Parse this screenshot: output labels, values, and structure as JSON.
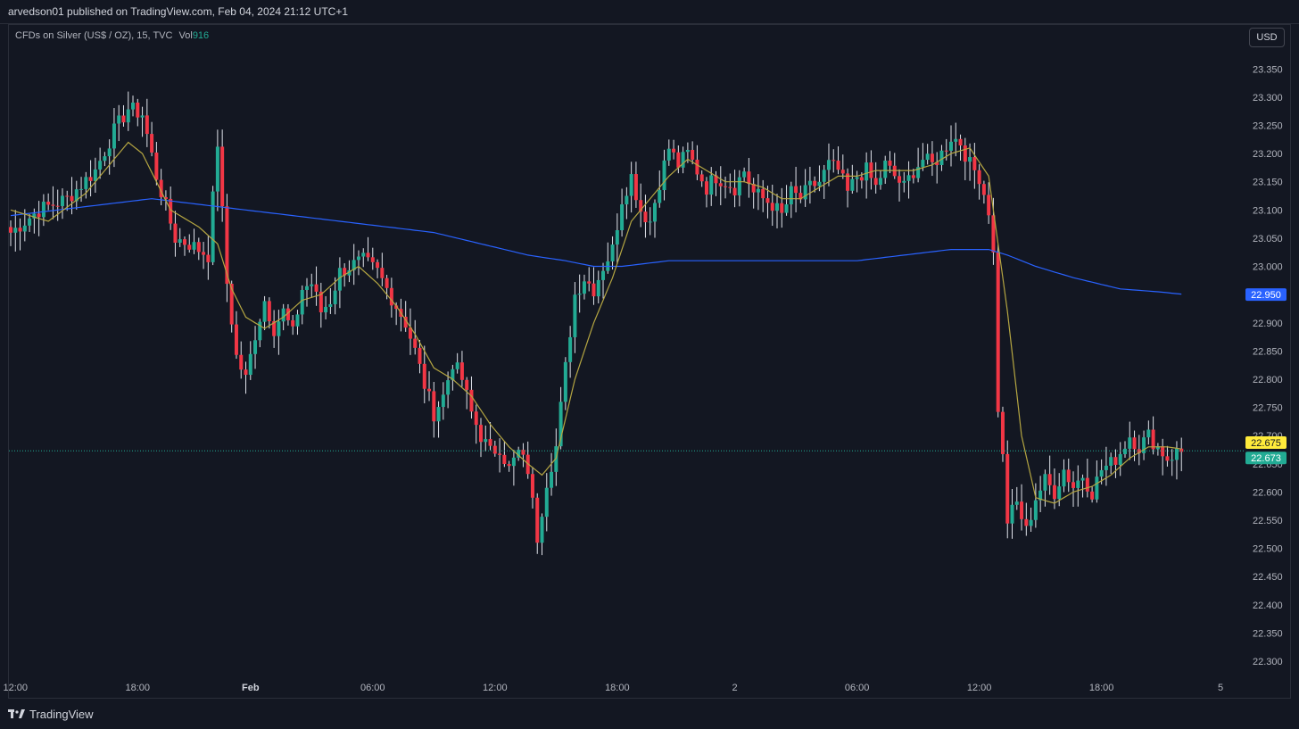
{
  "header": {
    "published_text": "arvedson01 published on TradingView.com, Feb 04, 2024 21:12 UTC+1"
  },
  "legend": {
    "symbol_text": "CFDs on Silver (US$ / OZ), 15, TVC",
    "volume_label": "Vol",
    "volume_value": "916"
  },
  "currency_button": "USD",
  "footer": {
    "brand": "TradingView"
  },
  "colors": {
    "background": "#131722",
    "up": "#22ab94",
    "down": "#f23645",
    "wick": "#e0e3eb",
    "ma_fast": "#b5a642",
    "ma_slow": "#2962ff",
    "last_price": "#22ab94",
    "ma_tag": "#ffeb3b",
    "slow_tag": "#2962ff"
  },
  "chart_data": {
    "type": "candlestick",
    "title": "CFDs on Silver (US$ / OZ), 15, TVC",
    "x_ticks": [
      "12:00",
      "18:00",
      "Feb",
      "06:00",
      "12:00",
      "18:00",
      "2",
      "06:00",
      "12:00",
      "18:00",
      "5"
    ],
    "y_ticks": [
      "23.350",
      "23.300",
      "23.250",
      "23.200",
      "23.150",
      "23.100",
      "23.050",
      "23.000",
      "22.950",
      "22.900",
      "22.850",
      "22.800",
      "22.750",
      "22.700",
      "22.650",
      "22.600",
      "22.550",
      "22.500",
      "22.450",
      "22.400",
      "22.350",
      "22.300"
    ],
    "ylim": [
      22.27,
      23.39
    ],
    "price_labels": [
      {
        "text": "22.950",
        "value": 22.95,
        "color": "#2962ff",
        "text_color": "#ffffff"
      },
      {
        "text": "22.675",
        "value": 22.675,
        "color": "#ffeb3b",
        "text_color": "#131722"
      },
      {
        "text": "22.673",
        "value": 22.673,
        "color": "#22ab94",
        "text_color": "#ffffff"
      }
    ],
    "last_price": 22.673,
    "anchors": [
      [
        0,
        23.06
      ],
      [
        6,
        23.1
      ],
      [
        12,
        23.12
      ],
      [
        18,
        23.17
      ],
      [
        22,
        23.24
      ],
      [
        25,
        23.28
      ],
      [
        28,
        23.27
      ],
      [
        31,
        23.16
      ],
      [
        35,
        23.05
      ],
      [
        38,
        23.04
      ],
      [
        42,
        23.02
      ],
      [
        44,
        23.22
      ],
      [
        46,
        22.97
      ],
      [
        48,
        22.84
      ],
      [
        50,
        22.8
      ],
      [
        52,
        22.88
      ],
      [
        54,
        22.94
      ],
      [
        56,
        22.89
      ],
      [
        58,
        22.92
      ],
      [
        60,
        22.88
      ],
      [
        62,
        22.96
      ],
      [
        64,
        22.97
      ],
      [
        66,
        22.92
      ],
      [
        68,
        22.94
      ],
      [
        70,
        22.99
      ],
      [
        72,
        23.0
      ],
      [
        75,
        23.01
      ],
      [
        78,
        22.99
      ],
      [
        80,
        22.96
      ],
      [
        82,
        22.93
      ],
      [
        84,
        22.9
      ],
      [
        86,
        22.85
      ],
      [
        88,
        22.79
      ],
      [
        90,
        22.74
      ],
      [
        92,
        22.77
      ],
      [
        94,
        22.83
      ],
      [
        96,
        22.8
      ],
      [
        98,
        22.74
      ],
      [
        100,
        22.7
      ],
      [
        102,
        22.67
      ],
      [
        104,
        22.68
      ],
      [
        106,
        22.64
      ],
      [
        108,
        22.67
      ],
      [
        110,
        22.64
      ],
      [
        112,
        22.52
      ],
      [
        114,
        22.62
      ],
      [
        116,
        22.68
      ],
      [
        118,
        22.82
      ],
      [
        120,
        22.95
      ],
      [
        122,
        22.98
      ],
      [
        124,
        22.96
      ],
      [
        126,
        23.0
      ],
      [
        128,
        23.03
      ],
      [
        130,
        23.12
      ],
      [
        132,
        23.16
      ],
      [
        134,
        23.1
      ],
      [
        136,
        23.08
      ],
      [
        138,
        23.15
      ],
      [
        140,
        23.21
      ],
      [
        142,
        23.18
      ],
      [
        144,
        23.2
      ],
      [
        146,
        23.17
      ],
      [
        148,
        23.14
      ],
      [
        150,
        23.16
      ],
      [
        152,
        23.15
      ],
      [
        154,
        23.14
      ],
      [
        156,
        23.17
      ],
      [
        158,
        23.13
      ],
      [
        160,
        23.12
      ],
      [
        162,
        23.11
      ],
      [
        164,
        23.09
      ],
      [
        166,
        23.13
      ],
      [
        168,
        23.12
      ],
      [
        170,
        23.14
      ],
      [
        172,
        23.15
      ],
      [
        174,
        23.18
      ],
      [
        176,
        23.17
      ],
      [
        178,
        23.13
      ],
      [
        180,
        23.16
      ],
      [
        182,
        23.17
      ],
      [
        184,
        23.14
      ],
      [
        186,
        23.18
      ],
      [
        188,
        23.16
      ],
      [
        190,
        23.14
      ],
      [
        192,
        23.17
      ],
      [
        194,
        23.19
      ],
      [
        196,
        23.18
      ],
      [
        198,
        23.2
      ],
      [
        200,
        23.23
      ],
      [
        202,
        23.22
      ],
      [
        204,
        23.18
      ],
      [
        206,
        23.16
      ],
      [
        208,
        23.1
      ],
      [
        209,
        23.02
      ],
      [
        210,
        22.75
      ],
      [
        211,
        22.66
      ],
      [
        212,
        22.55
      ],
      [
        214,
        22.58
      ],
      [
        216,
        22.53
      ],
      [
        218,
        22.59
      ],
      [
        220,
        22.62
      ],
      [
        222,
        22.6
      ],
      [
        224,
        22.64
      ],
      [
        226,
        22.61
      ],
      [
        228,
        22.63
      ],
      [
        230,
        22.6
      ],
      [
        232,
        22.64
      ],
      [
        234,
        22.65
      ],
      [
        236,
        22.67
      ],
      [
        238,
        22.7
      ],
      [
        240,
        22.68
      ],
      [
        242,
        22.7
      ],
      [
        244,
        22.68
      ],
      [
        246,
        22.66
      ],
      [
        248,
        22.67
      ],
      [
        250,
        22.673
      ]
    ],
    "fast_ma": [
      [
        0,
        23.1
      ],
      [
        8,
        23.08
      ],
      [
        16,
        23.13
      ],
      [
        22,
        23.19
      ],
      [
        25,
        23.22
      ],
      [
        28,
        23.2
      ],
      [
        34,
        23.1
      ],
      [
        40,
        23.07
      ],
      [
        44,
        23.04
      ],
      [
        47,
        22.96
      ],
      [
        50,
        22.91
      ],
      [
        54,
        22.89
      ],
      [
        58,
        22.91
      ],
      [
        62,
        22.94
      ],
      [
        66,
        22.95
      ],
      [
        70,
        22.98
      ],
      [
        74,
        23.0
      ],
      [
        78,
        22.97
      ],
      [
        82,
        22.93
      ],
      [
        86,
        22.88
      ],
      [
        90,
        22.82
      ],
      [
        94,
        22.8
      ],
      [
        98,
        22.77
      ],
      [
        102,
        22.72
      ],
      [
        106,
        22.68
      ],
      [
        110,
        22.65
      ],
      [
        113,
        22.63
      ],
      [
        116,
        22.66
      ],
      [
        120,
        22.8
      ],
      [
        124,
        22.9
      ],
      [
        128,
        22.98
      ],
      [
        132,
        23.08
      ],
      [
        136,
        23.12
      ],
      [
        140,
        23.16
      ],
      [
        144,
        23.19
      ],
      [
        148,
        23.17
      ],
      [
        152,
        23.15
      ],
      [
        156,
        23.15
      ],
      [
        160,
        23.14
      ],
      [
        164,
        23.12
      ],
      [
        168,
        23.12
      ],
      [
        172,
        23.14
      ],
      [
        176,
        23.16
      ],
      [
        180,
        23.16
      ],
      [
        184,
        23.17
      ],
      [
        188,
        23.17
      ],
      [
        192,
        23.17
      ],
      [
        196,
        23.18
      ],
      [
        200,
        23.2
      ],
      [
        204,
        23.21
      ],
      [
        208,
        23.16
      ],
      [
        212,
        22.92
      ],
      [
        215,
        22.7
      ],
      [
        218,
        22.59
      ],
      [
        222,
        22.58
      ],
      [
        226,
        22.6
      ],
      [
        230,
        22.61
      ],
      [
        234,
        22.63
      ],
      [
        238,
        22.66
      ],
      [
        242,
        22.68
      ],
      [
        246,
        22.68
      ],
      [
        250,
        22.675
      ]
    ],
    "slow_ma": [
      [
        0,
        23.09
      ],
      [
        10,
        23.1
      ],
      [
        20,
        23.11
      ],
      [
        30,
        23.12
      ],
      [
        40,
        23.11
      ],
      [
        50,
        23.1
      ],
      [
        60,
        23.09
      ],
      [
        70,
        23.08
      ],
      [
        80,
        23.07
      ],
      [
        90,
        23.06
      ],
      [
        100,
        23.04
      ],
      [
        110,
        23.02
      ],
      [
        118,
        23.01
      ],
      [
        124,
        23.0
      ],
      [
        130,
        23.0
      ],
      [
        140,
        23.01
      ],
      [
        150,
        23.01
      ],
      [
        160,
        23.01
      ],
      [
        170,
        23.01
      ],
      [
        180,
        23.01
      ],
      [
        190,
        23.02
      ],
      [
        200,
        23.03
      ],
      [
        208,
        23.03
      ],
      [
        212,
        23.02
      ],
      [
        218,
        23.0
      ],
      [
        226,
        22.98
      ],
      [
        236,
        22.96
      ],
      [
        244,
        22.955
      ],
      [
        250,
        22.95
      ]
    ],
    "candle_count": 250
  }
}
